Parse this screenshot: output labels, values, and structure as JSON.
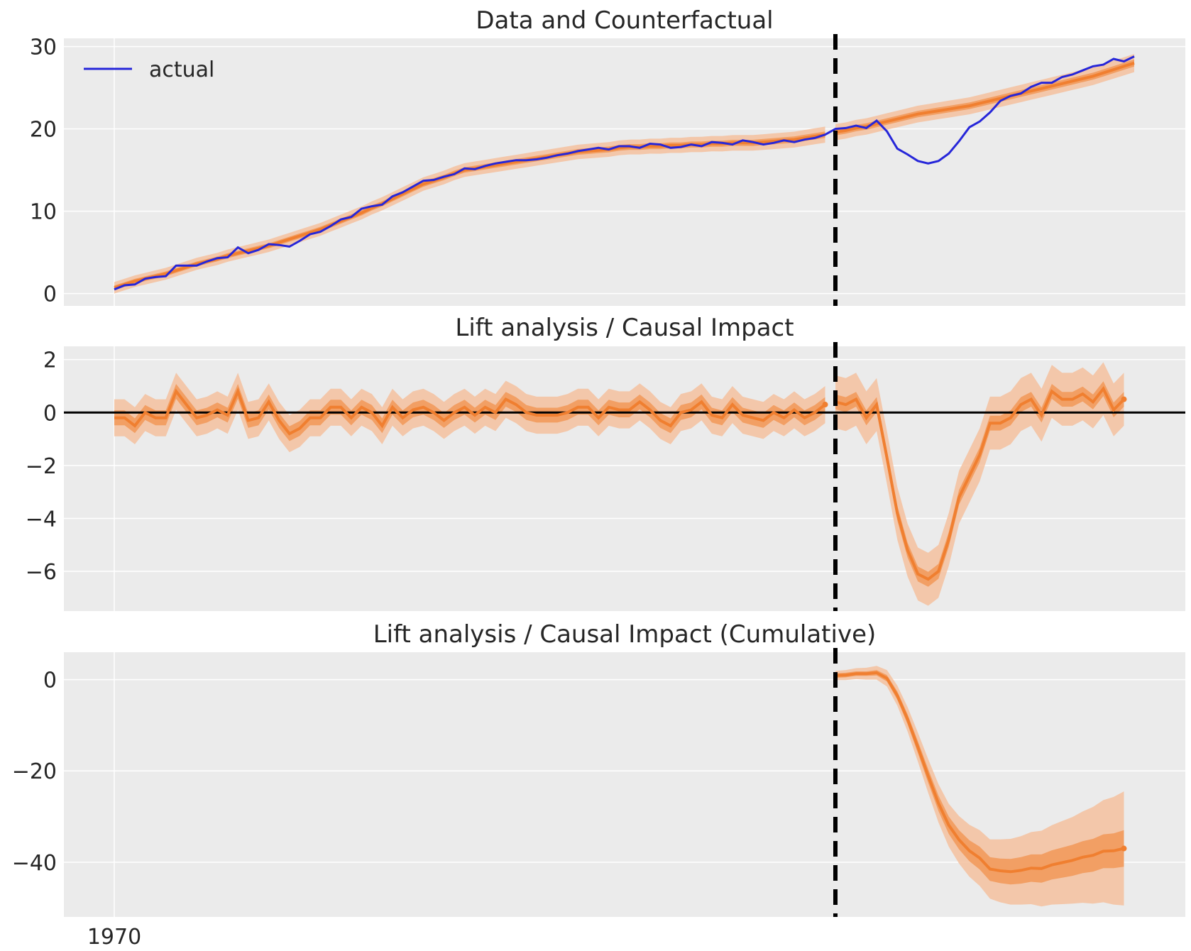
{
  "chart_data": [
    {
      "type": "line",
      "title": "Data and Counterfactual",
      "xlabel": "",
      "ylabel": "",
      "ylim": [
        -1.5,
        31
      ],
      "yticks": [
        0,
        10,
        20,
        30
      ],
      "ytick_labels": [
        "0",
        "10",
        "20",
        "30"
      ],
      "grid": true,
      "legend_position": "top-left",
      "legend": [
        "actual"
      ],
      "series": [
        {
          "name": "actual",
          "color": "#2626d9",
          "values": [
            0.5,
            1.0,
            1.1,
            1.8,
            2.0,
            2.1,
            3.4,
            3.4,
            3.4,
            3.9,
            4.3,
            4.4,
            5.6,
            4.9,
            5.3,
            6.0,
            5.9,
            5.7,
            6.4,
            7.2,
            7.5,
            8.2,
            9.0,
            9.3,
            10.3,
            10.6,
            10.8,
            11.8,
            12.3,
            13.0,
            13.7,
            13.8,
            14.2,
            14.5,
            15.2,
            15.1,
            15.5,
            15.8,
            16.0,
            16.2,
            16.2,
            16.3,
            16.5,
            16.8,
            17.0,
            17.3,
            17.5,
            17.7,
            17.5,
            17.9,
            17.9,
            17.7,
            18.2,
            18.1,
            17.7,
            17.8,
            18.1,
            17.9,
            18.4,
            18.3,
            18.1,
            18.6,
            18.4,
            18.1,
            18.3,
            18.6,
            18.4,
            18.7,
            18.9,
            19.3,
            20.0,
            20.1,
            20.4,
            20.1,
            21.0,
            19.7,
            17.6,
            16.9,
            16.1,
            15.8,
            16.1,
            17.0,
            18.5,
            20.2,
            20.9,
            22.0,
            23.4,
            24.0,
            24.3,
            25.1,
            25.6,
            25.6,
            26.3,
            26.6,
            27.1,
            27.6,
            27.8,
            28.5,
            28.2,
            28.8
          ]
        },
        {
          "name": "",
          "color": "#f07f30",
          "values": [
            0.7,
            1.1,
            1.5,
            1.8,
            2.1,
            2.4,
            2.8,
            3.2,
            3.6,
            3.9,
            4.2,
            4.6,
            4.9,
            5.2,
            5.5,
            5.8,
            6.2,
            6.6,
            7.0,
            7.4,
            7.8,
            8.3,
            8.8,
            9.3,
            9.8,
            10.4,
            10.9,
            11.5,
            12.1,
            12.7,
            13.3,
            13.7,
            14.1,
            14.6,
            15.0,
            15.2,
            15.4,
            15.6,
            15.8,
            16.0,
            16.2,
            16.4,
            16.6,
            16.8,
            17.0,
            17.2,
            17.3,
            17.4,
            17.5,
            17.7,
            17.8,
            17.8,
            17.9,
            17.9,
            18.0,
            18.0,
            18.1,
            18.1,
            18.2,
            18.2,
            18.3,
            18.3,
            18.3,
            18.4,
            18.5,
            18.6,
            18.7,
            18.9,
            19.1,
            19.3,
            19.6,
            19.8,
            20.1,
            20.3,
            20.6,
            20.9,
            21.2,
            21.5,
            21.8,
            22.0,
            22.2,
            22.4,
            22.6,
            22.8,
            23.1,
            23.4,
            23.7,
            24.0,
            24.3,
            24.6,
            24.9,
            25.2,
            25.5,
            25.8,
            26.1,
            26.4,
            26.8,
            27.2,
            27.6,
            28.0
          ]
        }
      ]
    },
    {
      "type": "line",
      "title": "Lift analysis / Causal Impact",
      "xlabel": "",
      "ylabel": "",
      "ylim": [
        -7.5,
        2.5
      ],
      "yticks": [
        2,
        0,
        -2,
        -4,
        -6
      ],
      "ytick_labels": [
        "2",
        "0",
        "−2",
        "−4",
        "−6"
      ],
      "grid": true,
      "series": [
        {
          "name": "",
          "color": "#f07f30",
          "values": [
            -0.2,
            -0.2,
            -0.5,
            0.0,
            -0.2,
            -0.2,
            0.8,
            0.3,
            -0.2,
            -0.1,
            0.1,
            -0.1,
            0.8,
            -0.3,
            -0.2,
            0.4,
            -0.3,
            -0.8,
            -0.6,
            -0.2,
            -0.2,
            0.2,
            0.2,
            -0.2,
            0.2,
            0.0,
            -0.5,
            0.2,
            -0.2,
            0.1,
            0.2,
            0.0,
            -0.3,
            0.0,
            0.2,
            -0.1,
            0.2,
            0.0,
            0.5,
            0.3,
            0.0,
            -0.1,
            -0.1,
            -0.1,
            0.0,
            0.2,
            0.2,
            -0.2,
            0.2,
            0.1,
            0.1,
            0.4,
            0.1,
            -0.3,
            -0.5,
            0.0,
            0.1,
            0.4,
            -0.1,
            -0.2,
            0.3,
            -0.1,
            -0.2,
            -0.3,
            0.0,
            -0.2,
            0.1,
            -0.2,
            0.0,
            0.3
          ],
          "interval_50": [
            0.25,
            0.25,
            0.3,
            0.3,
            0.3,
            0.3
          ],
          "interval_94": 0.7
        },
        {
          "name": "",
          "color": "#f07f30",
          "values": [
            0.4,
            0.3,
            0.5,
            -0.2,
            0.3,
            -1.7,
            -3.8,
            -5.2,
            -6.1,
            -6.3,
            -6.0,
            -4.8,
            -3.2,
            -2.4,
            -1.6,
            -0.4,
            -0.4,
            -0.2,
            0.3,
            0.5,
            -0.1,
            0.8,
            0.5,
            0.5,
            0.7,
            0.4,
            0.9,
            0.1,
            0.5
          ],
          "interval_50": 0.28,
          "interval_94": 1.0
        }
      ]
    },
    {
      "type": "line",
      "title": "Lift analysis / Causal Impact (Cumulative)",
      "xlabel": "",
      "ylabel": "",
      "ylim": [
        -52,
        6
      ],
      "yticks": [
        0,
        -20,
        -40
      ],
      "ytick_labels": [
        "0",
        "−20",
        "−40"
      ],
      "grid": true,
      "series": [
        {
          "name": "",
          "color": "#f07f30",
          "values": [
            0.9,
            1.0,
            1.3,
            1.3,
            1.5,
            0.3,
            -3.5,
            -8.7,
            -14.8,
            -21.1,
            -27.1,
            -31.9,
            -35.1,
            -37.5,
            -39.1,
            -41.5,
            -41.9,
            -42.1,
            -41.8,
            -41.3,
            -41.4,
            -40.6,
            -40.1,
            -39.6,
            -38.9,
            -38.5,
            -37.6,
            -37.5,
            -37.0
          ],
          "interval_50_width": [
            0.5,
            0.5,
            0.5,
            0.5,
            0.6,
            0.7,
            0.9,
            1.1,
            1.3,
            1.5,
            1.7,
            1.9,
            2.1,
            2.3,
            2.5,
            2.6,
            2.7,
            2.8,
            2.9,
            3.0,
            3.1,
            3.2,
            3.3,
            3.4,
            3.5,
            3.6,
            3.7,
            3.8,
            4.0
          ],
          "interval_94_width": [
            1.0,
            1.1,
            1.2,
            1.3,
            1.5,
            1.8,
            2.2,
            2.7,
            3.2,
            3.7,
            4.2,
            4.7,
            5.2,
            5.7,
            6.1,
            6.5,
            6.9,
            7.2,
            7.5,
            7.9,
            8.3,
            8.7,
            9.1,
            9.5,
            10.0,
            10.6,
            11.2,
            11.8,
            12.5
          ]
        }
      ]
    }
  ],
  "x_axis": {
    "tick_label": "1970",
    "n_points": 100,
    "intervention_index": 70
  },
  "colors": {
    "actual": "#2626d9",
    "counterfactual": "#f07f30",
    "band_outer": "#f4c19f",
    "band_inner": "#f29a5c",
    "panel_background": "#ebebeb",
    "grid": "#ffffff",
    "intervention_line": "#000000",
    "zero_line": "#000000"
  }
}
